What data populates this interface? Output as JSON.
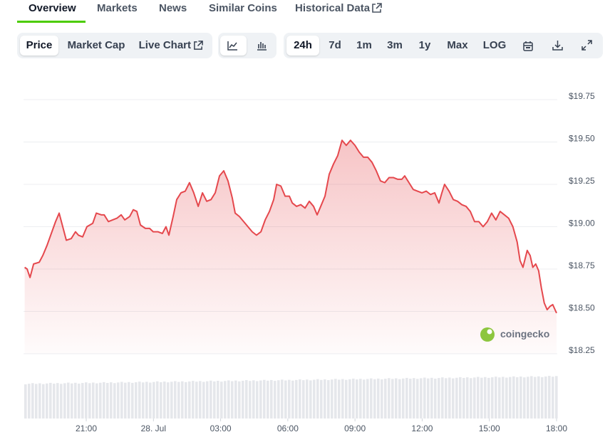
{
  "tabs": [
    "Overview",
    "Markets",
    "News",
    "Similar Coins",
    "Historical Data"
  ],
  "chart_type_buttons": [
    "Price",
    "Market Cap",
    "Live Chart"
  ],
  "range_buttons": [
    "24h",
    "7d",
    "1m",
    "3m",
    "1y",
    "Max",
    "LOG"
  ],
  "watermark": "coingecko",
  "chart_data": {
    "type": "area",
    "color": "#e5484d",
    "x": [
      18.25,
      18.36,
      18.49,
      18.65,
      18.9,
      19.06,
      19.25,
      19.44,
      19.63,
      19.79,
      19.95,
      20.11,
      20.33,
      20.52,
      20.65,
      20.84,
      21.03,
      21.29,
      21.45,
      21.67,
      21.8,
      21.99,
      22.18,
      22.37,
      22.56,
      22.72,
      22.94,
      23.1,
      23.26,
      23.42,
      23.64,
      23.83,
      23.99,
      24.21,
      24.4,
      24.56,
      24.69,
      24.88,
      25.04,
      25.23,
      25.42,
      25.61,
      25.8,
      26.0,
      26.19,
      26.38,
      26.57,
      26.76,
      26.95,
      27.14,
      27.33,
      27.52,
      27.65,
      27.84,
      28.03,
      28.22,
      28.41,
      28.6,
      28.8,
      28.99,
      29.18,
      29.37,
      29.5,
      29.69,
      29.88,
      30.07,
      30.2,
      30.39,
      30.58,
      30.77,
      30.96,
      31.15,
      31.31,
      31.47,
      31.66,
      31.85,
      32.04,
      32.23,
      32.42,
      32.61,
      32.8,
      33.0,
      33.19,
      33.38,
      33.57,
      33.76,
      33.95,
      34.14,
      34.33,
      34.52,
      34.71,
      34.9,
      35.09,
      35.22,
      35.41,
      35.6,
      35.79,
      35.99,
      36.18,
      36.37,
      36.56,
      36.75,
      36.88,
      37.0,
      37.2,
      37.39,
      37.58,
      37.77,
      37.96,
      38.15,
      38.34,
      38.53,
      38.72,
      38.91,
      39.1,
      39.29,
      39.48,
      39.67,
      39.86,
      40.05,
      40.24,
      40.37,
      40.5,
      40.69,
      40.82,
      40.94,
      41.07,
      41.2,
      41.32,
      41.45,
      41.58,
      41.71,
      41.83,
      42.0
    ],
    "values": [
      18.76,
      18.75,
      18.7,
      18.78,
      18.79,
      18.83,
      18.89,
      18.96,
      19.03,
      19.08,
      19.0,
      18.92,
      18.93,
      18.97,
      18.95,
      18.94,
      19.0,
      19.02,
      19.08,
      19.07,
      19.07,
      19.03,
      19.04,
      19.05,
      19.07,
      19.04,
      19.06,
      19.1,
      19.09,
      19.01,
      18.99,
      18.99,
      18.97,
      18.97,
      18.96,
      19.0,
      18.95,
      19.06,
      19.16,
      19.2,
      19.21,
      19.26,
      19.2,
      19.12,
      19.2,
      19.15,
      19.16,
      19.2,
      19.3,
      19.33,
      19.27,
      19.17,
      19.08,
      19.06,
      19.03,
      19.0,
      18.97,
      18.95,
      18.97,
      19.04,
      19.09,
      19.16,
      19.25,
      19.24,
      19.18,
      19.18,
      19.14,
      19.12,
      19.13,
      19.11,
      19.15,
      19.12,
      19.07,
      19.12,
      19.18,
      19.31,
      19.37,
      19.42,
      19.51,
      19.48,
      19.51,
      19.48,
      19.44,
      19.41,
      19.41,
      19.38,
      19.33,
      19.27,
      19.26,
      19.29,
      19.29,
      19.28,
      19.28,
      19.3,
      19.26,
      19.22,
      19.21,
      19.2,
      19.21,
      19.19,
      19.2,
      19.14,
      19.2,
      19.25,
      19.21,
      19.16,
      19.15,
      19.13,
      19.12,
      19.09,
      19.03,
      19.03,
      19.0,
      19.03,
      19.08,
      19.04,
      19.09,
      19.07,
      19.05,
      19.0,
      18.91,
      18.8,
      18.76,
      18.86,
      18.83,
      18.76,
      18.78,
      18.74,
      18.64,
      18.55,
      18.51,
      18.53,
      18.54,
      18.49
    ],
    "xlim": [
      18.25,
      42
    ],
    "ylim": [
      18.25,
      19.75
    ],
    "xticks": [
      {
        "value": 21,
        "label": "21:00"
      },
      {
        "value": 24,
        "label": "28. Jul"
      },
      {
        "value": 27,
        "label": "03:00"
      },
      {
        "value": 30,
        "label": "06:00"
      },
      {
        "value": 33,
        "label": "09:00"
      },
      {
        "value": 36,
        "label": "12:00"
      },
      {
        "value": 39,
        "label": "15:00"
      },
      {
        "value": 42,
        "label": "18:00"
      }
    ],
    "yticks": [
      {
        "value": 18.25,
        "label": "$18.25"
      },
      {
        "value": 18.5,
        "label": "$18.50"
      },
      {
        "value": 18.75,
        "label": "$18.75"
      },
      {
        "value": 19,
        "label": "$19.00"
      },
      {
        "value": 19.25,
        "label": "$19.25"
      },
      {
        "value": 19.5,
        "label": "$19.50"
      },
      {
        "value": 19.75,
        "label": "$19.75"
      }
    ],
    "grid": true
  }
}
